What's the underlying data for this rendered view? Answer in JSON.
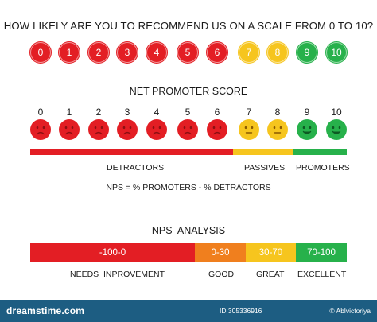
{
  "title": "HOW LIKELY ARE YOU TO RECOMMEND US ON A SCALE FROM 0 TO 10?",
  "scale_circles": [
    {
      "label": "0",
      "color": "#e31e24"
    },
    {
      "label": "1",
      "color": "#e31e24"
    },
    {
      "label": "2",
      "color": "#e31e24"
    },
    {
      "label": "3",
      "color": "#e31e24"
    },
    {
      "label": "4",
      "color": "#e31e24"
    },
    {
      "label": "5",
      "color": "#e31e24"
    },
    {
      "label": "6",
      "color": "#e31e24"
    },
    {
      "label": "7",
      "color": "#f6c51e"
    },
    {
      "label": "8",
      "color": "#f6c51e"
    },
    {
      "label": "9",
      "color": "#27b14b"
    },
    {
      "label": "10",
      "color": "#27b14b"
    }
  ],
  "nps": {
    "title": "NET PROMOTER SCORE",
    "scores": [
      "0",
      "1",
      "2",
      "3",
      "4",
      "5",
      "6",
      "7",
      "8",
      "9",
      "10"
    ],
    "faces": [
      {
        "mood": "sad",
        "color": "#e31e24"
      },
      {
        "mood": "sad",
        "color": "#e31e24"
      },
      {
        "mood": "sad",
        "color": "#e31e24"
      },
      {
        "mood": "sad",
        "color": "#e31e24"
      },
      {
        "mood": "sad",
        "color": "#e31e24"
      },
      {
        "mood": "sad",
        "color": "#e31e24"
      },
      {
        "mood": "sad",
        "color": "#e31e24"
      },
      {
        "mood": "neutral",
        "color": "#f6c51e"
      },
      {
        "mood": "neutral",
        "color": "#f6c51e"
      },
      {
        "mood": "happy",
        "color": "#27b14b"
      },
      {
        "mood": "happy",
        "color": "#27b14b"
      }
    ],
    "bar_colors": {
      "detractors": "#e31e24",
      "passives": "#f6c51e",
      "promoters": "#27b14b"
    },
    "detractors_label": "DETRACTORS",
    "passives_label": "PASSIVES",
    "promoters_label": "PROMOTERS",
    "formula": "NPS = % PROMOTERS - % DETRACTORS"
  },
  "analysis": {
    "title": "NPS  ANALYSIS",
    "segments": [
      {
        "range": "-100-0",
        "label": "NEEDS  INPROVEMENT",
        "color": "#e31e24"
      },
      {
        "range": "0-30",
        "label": "GOOD",
        "color": "#f07f1e"
      },
      {
        "range": "30-70",
        "label": "GREAT",
        "color": "#f6c51e"
      },
      {
        "range": "70-100",
        "label": "EXCELLENT",
        "color": "#27b14b"
      }
    ]
  },
  "footer": {
    "brand": "dreamstime.com",
    "id_text": "ID 305336916",
    "author_text": "© Ablvictoriya",
    "background": "#1d5d82"
  }
}
